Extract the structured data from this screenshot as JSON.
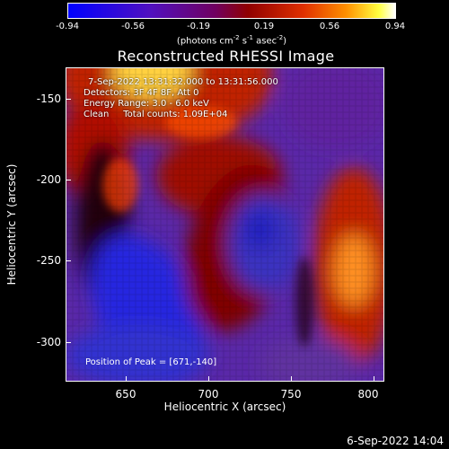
{
  "colorbar": {
    "ticks": [
      "-0.94",
      "-0.56",
      "-0.19",
      "0.19",
      "0.56",
      "0.94"
    ],
    "unit_pre": "(photons cm",
    "unit_exp1": "-2",
    "unit_mid": " s",
    "unit_exp2": "-1",
    "unit_post": " asec",
    "unit_exp3": "-2",
    "unit_end": ")"
  },
  "title": "Reconstructed RHESSI Image",
  "info": {
    "time": "7-Sep-2022 13:31:32.000 to 13:31:56.000",
    "detectors": "Detectors: 3F 4F 8F, Att 0",
    "energy": "Energy Range: 3.0 - 6.0 keV",
    "clean": "Clean     Total counts: 1.09E+04"
  },
  "peak": "Position of Peak = [671,-140]",
  "axes": {
    "y_ticks": [
      "-150",
      "-200",
      "-250",
      "-300"
    ],
    "x_ticks": [
      "650",
      "700",
      "750",
      "800"
    ],
    "xlabel": "Heliocentric X (arcsec)",
    "ylabel": "Heliocentric Y (arcsec)"
  },
  "footer_date": "6-Sep-2022 14:04",
  "colors": {
    "low": "#2020ff",
    "mid_low": "#7030a0",
    "mid": "#800000",
    "high": "#ff6000",
    "peak": "#ffffff"
  }
}
